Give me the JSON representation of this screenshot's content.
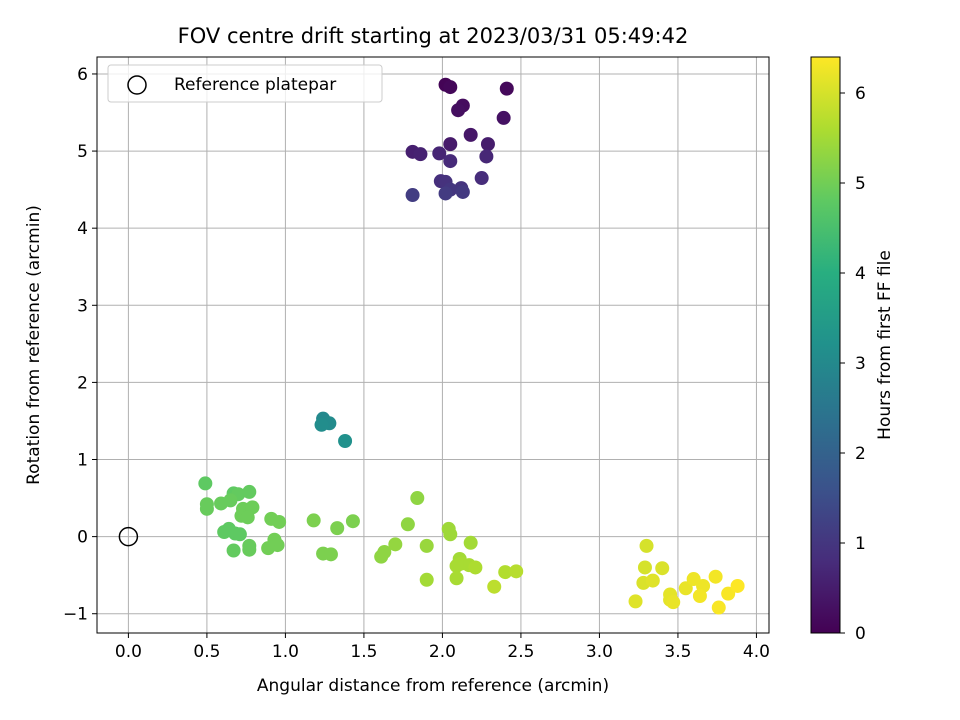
{
  "chart_data": {
    "type": "scatter",
    "title": "FOV centre drift starting at 2023/03/31 05:49:42",
    "xlabel": "Angular distance from reference (arcmin)",
    "ylabel": "Rotation from reference (arcmin)",
    "xlim": [
      -0.2,
      4.08
    ],
    "ylim": [
      -1.25,
      6.22
    ],
    "x_ticks": [
      0.0,
      0.5,
      1.0,
      1.5,
      2.0,
      2.5,
      3.0,
      3.5,
      4.0
    ],
    "x_tick_labels": [
      "0.0",
      "0.5",
      "1.0",
      "1.5",
      "2.0",
      "2.5",
      "3.0",
      "3.5",
      "4.0"
    ],
    "y_ticks": [
      -1,
      0,
      1,
      2,
      3,
      4,
      5,
      6
    ],
    "y_tick_labels": [
      "−1",
      "0",
      "1",
      "2",
      "3",
      "4",
      "5",
      "6"
    ],
    "grid": true,
    "legend": {
      "placement": "upper-left",
      "entries": [
        {
          "label": "Reference platepar",
          "marker": "open-circle",
          "color": "#000000"
        }
      ]
    },
    "reference_point": {
      "x": 0.0,
      "y": 0.0
    },
    "colorbar": {
      "label": "Hours from first FF file",
      "colormap": "viridis",
      "range": [
        0,
        6.4
      ],
      "ticks": [
        0,
        1,
        2,
        3,
        4,
        5,
        6
      ],
      "tick_labels": [
        "0",
        "1",
        "2",
        "3",
        "4",
        "5",
        "6"
      ]
    },
    "points": [
      {
        "x": 2.02,
        "y": 5.86,
        "c": 0.05
      },
      {
        "x": 2.05,
        "y": 5.83,
        "c": 0.1
      },
      {
        "x": 2.41,
        "y": 5.81,
        "c": 0.15
      },
      {
        "x": 2.13,
        "y": 5.59,
        "c": 0.2
      },
      {
        "x": 2.1,
        "y": 5.53,
        "c": 0.25
      },
      {
        "x": 2.39,
        "y": 5.43,
        "c": 0.3
      },
      {
        "x": 2.18,
        "y": 5.21,
        "c": 0.4
      },
      {
        "x": 2.05,
        "y": 5.09,
        "c": 0.45
      },
      {
        "x": 2.29,
        "y": 5.09,
        "c": 0.5
      },
      {
        "x": 1.81,
        "y": 4.99,
        "c": 0.55
      },
      {
        "x": 1.86,
        "y": 4.96,
        "c": 0.6
      },
      {
        "x": 1.98,
        "y": 4.97,
        "c": 0.65
      },
      {
        "x": 2.28,
        "y": 4.93,
        "c": 0.7
      },
      {
        "x": 2.05,
        "y": 4.87,
        "c": 0.75
      },
      {
        "x": 2.25,
        "y": 4.65,
        "c": 0.8
      },
      {
        "x": 1.99,
        "y": 4.61,
        "c": 0.85
      },
      {
        "x": 2.02,
        "y": 4.6,
        "c": 0.9
      },
      {
        "x": 2.12,
        "y": 4.52,
        "c": 0.95
      },
      {
        "x": 2.05,
        "y": 4.5,
        "c": 1.0
      },
      {
        "x": 2.13,
        "y": 4.47,
        "c": 1.05
      },
      {
        "x": 2.02,
        "y": 4.45,
        "c": 1.1
      },
      {
        "x": 1.81,
        "y": 4.43,
        "c": 1.15
      },
      {
        "x": 1.24,
        "y": 1.53,
        "c": 3.0
      },
      {
        "x": 1.28,
        "y": 1.47,
        "c": 3.05
      },
      {
        "x": 1.23,
        "y": 1.45,
        "c": 3.1
      },
      {
        "x": 1.38,
        "y": 1.24,
        "c": 3.2
      },
      {
        "x": 0.49,
        "y": 0.69,
        "c": 4.8
      },
      {
        "x": 0.67,
        "y": 0.56,
        "c": 4.8
      },
      {
        "x": 0.7,
        "y": 0.55,
        "c": 4.85
      },
      {
        "x": 0.77,
        "y": 0.58,
        "c": 4.85
      },
      {
        "x": 0.5,
        "y": 0.42,
        "c": 4.9
      },
      {
        "x": 0.59,
        "y": 0.43,
        "c": 4.9
      },
      {
        "x": 0.65,
        "y": 0.47,
        "c": 4.9
      },
      {
        "x": 0.5,
        "y": 0.36,
        "c": 4.9
      },
      {
        "x": 0.73,
        "y": 0.36,
        "c": 4.95
      },
      {
        "x": 0.79,
        "y": 0.38,
        "c": 4.95
      },
      {
        "x": 0.72,
        "y": 0.27,
        "c": 4.95
      },
      {
        "x": 0.76,
        "y": 0.25,
        "c": 4.95
      },
      {
        "x": 0.91,
        "y": 0.23,
        "c": 5.0
      },
      {
        "x": 0.96,
        "y": 0.19,
        "c": 5.0
      },
      {
        "x": 0.64,
        "y": 0.1,
        "c": 4.8
      },
      {
        "x": 0.61,
        "y": 0.06,
        "c": 4.8
      },
      {
        "x": 0.68,
        "y": 0.04,
        "c": 4.8
      },
      {
        "x": 0.71,
        "y": 0.03,
        "c": 4.8
      },
      {
        "x": 0.93,
        "y": -0.04,
        "c": 5.0
      },
      {
        "x": 0.95,
        "y": -0.11,
        "c": 5.0
      },
      {
        "x": 0.89,
        "y": -0.15,
        "c": 5.0
      },
      {
        "x": 0.77,
        "y": -0.12,
        "c": 4.9
      },
      {
        "x": 0.67,
        "y": -0.18,
        "c": 4.85
      },
      {
        "x": 0.77,
        "y": -0.17,
        "c": 4.9
      },
      {
        "x": 1.18,
        "y": 0.21,
        "c": 5.1
      },
      {
        "x": 1.33,
        "y": 0.11,
        "c": 5.1
      },
      {
        "x": 1.43,
        "y": 0.2,
        "c": 5.1
      },
      {
        "x": 1.24,
        "y": -0.22,
        "c": 5.1
      },
      {
        "x": 1.29,
        "y": -0.23,
        "c": 5.1
      },
      {
        "x": 1.84,
        "y": 0.5,
        "c": 5.3
      },
      {
        "x": 1.78,
        "y": 0.16,
        "c": 5.3
      },
      {
        "x": 1.63,
        "y": -0.2,
        "c": 5.3
      },
      {
        "x": 1.61,
        "y": -0.26,
        "c": 5.3
      },
      {
        "x": 1.7,
        "y": -0.1,
        "c": 5.35
      },
      {
        "x": 1.9,
        "y": -0.12,
        "c": 5.4
      },
      {
        "x": 2.04,
        "y": 0.1,
        "c": 5.45
      },
      {
        "x": 2.05,
        "y": 0.03,
        "c": 5.45
      },
      {
        "x": 2.18,
        "y": -0.08,
        "c": 5.5
      },
      {
        "x": 2.11,
        "y": -0.29,
        "c": 5.5
      },
      {
        "x": 2.12,
        "y": -0.35,
        "c": 5.55
      },
      {
        "x": 2.17,
        "y": -0.37,
        "c": 5.55
      },
      {
        "x": 2.09,
        "y": -0.38,
        "c": 5.55
      },
      {
        "x": 2.21,
        "y": -0.4,
        "c": 5.6
      },
      {
        "x": 1.9,
        "y": -0.56,
        "c": 5.5
      },
      {
        "x": 2.09,
        "y": -0.54,
        "c": 5.55
      },
      {
        "x": 2.4,
        "y": -0.46,
        "c": 5.65
      },
      {
        "x": 2.47,
        "y": -0.45,
        "c": 5.7
      },
      {
        "x": 2.33,
        "y": -0.65,
        "c": 5.75
      },
      {
        "x": 3.3,
        "y": -0.12,
        "c": 6.0
      },
      {
        "x": 3.29,
        "y": -0.4,
        "c": 6.0
      },
      {
        "x": 3.4,
        "y": -0.41,
        "c": 6.05
      },
      {
        "x": 3.28,
        "y": -0.6,
        "c": 6.05
      },
      {
        "x": 3.34,
        "y": -0.57,
        "c": 6.1
      },
      {
        "x": 3.23,
        "y": -0.84,
        "c": 6.1
      },
      {
        "x": 3.45,
        "y": -0.75,
        "c": 6.15
      },
      {
        "x": 3.45,
        "y": -0.82,
        "c": 6.15
      },
      {
        "x": 3.47,
        "y": -0.85,
        "c": 6.2
      },
      {
        "x": 3.55,
        "y": -0.67,
        "c": 6.2
      },
      {
        "x": 3.6,
        "y": -0.55,
        "c": 6.25
      },
      {
        "x": 3.66,
        "y": -0.64,
        "c": 6.25
      },
      {
        "x": 3.64,
        "y": -0.77,
        "c": 6.3
      },
      {
        "x": 3.74,
        "y": -0.52,
        "c": 6.3
      },
      {
        "x": 3.76,
        "y": -0.92,
        "c": 6.35
      },
      {
        "x": 3.82,
        "y": -0.74,
        "c": 6.35
      },
      {
        "x": 3.88,
        "y": -0.64,
        "c": 6.4
      }
    ]
  }
}
